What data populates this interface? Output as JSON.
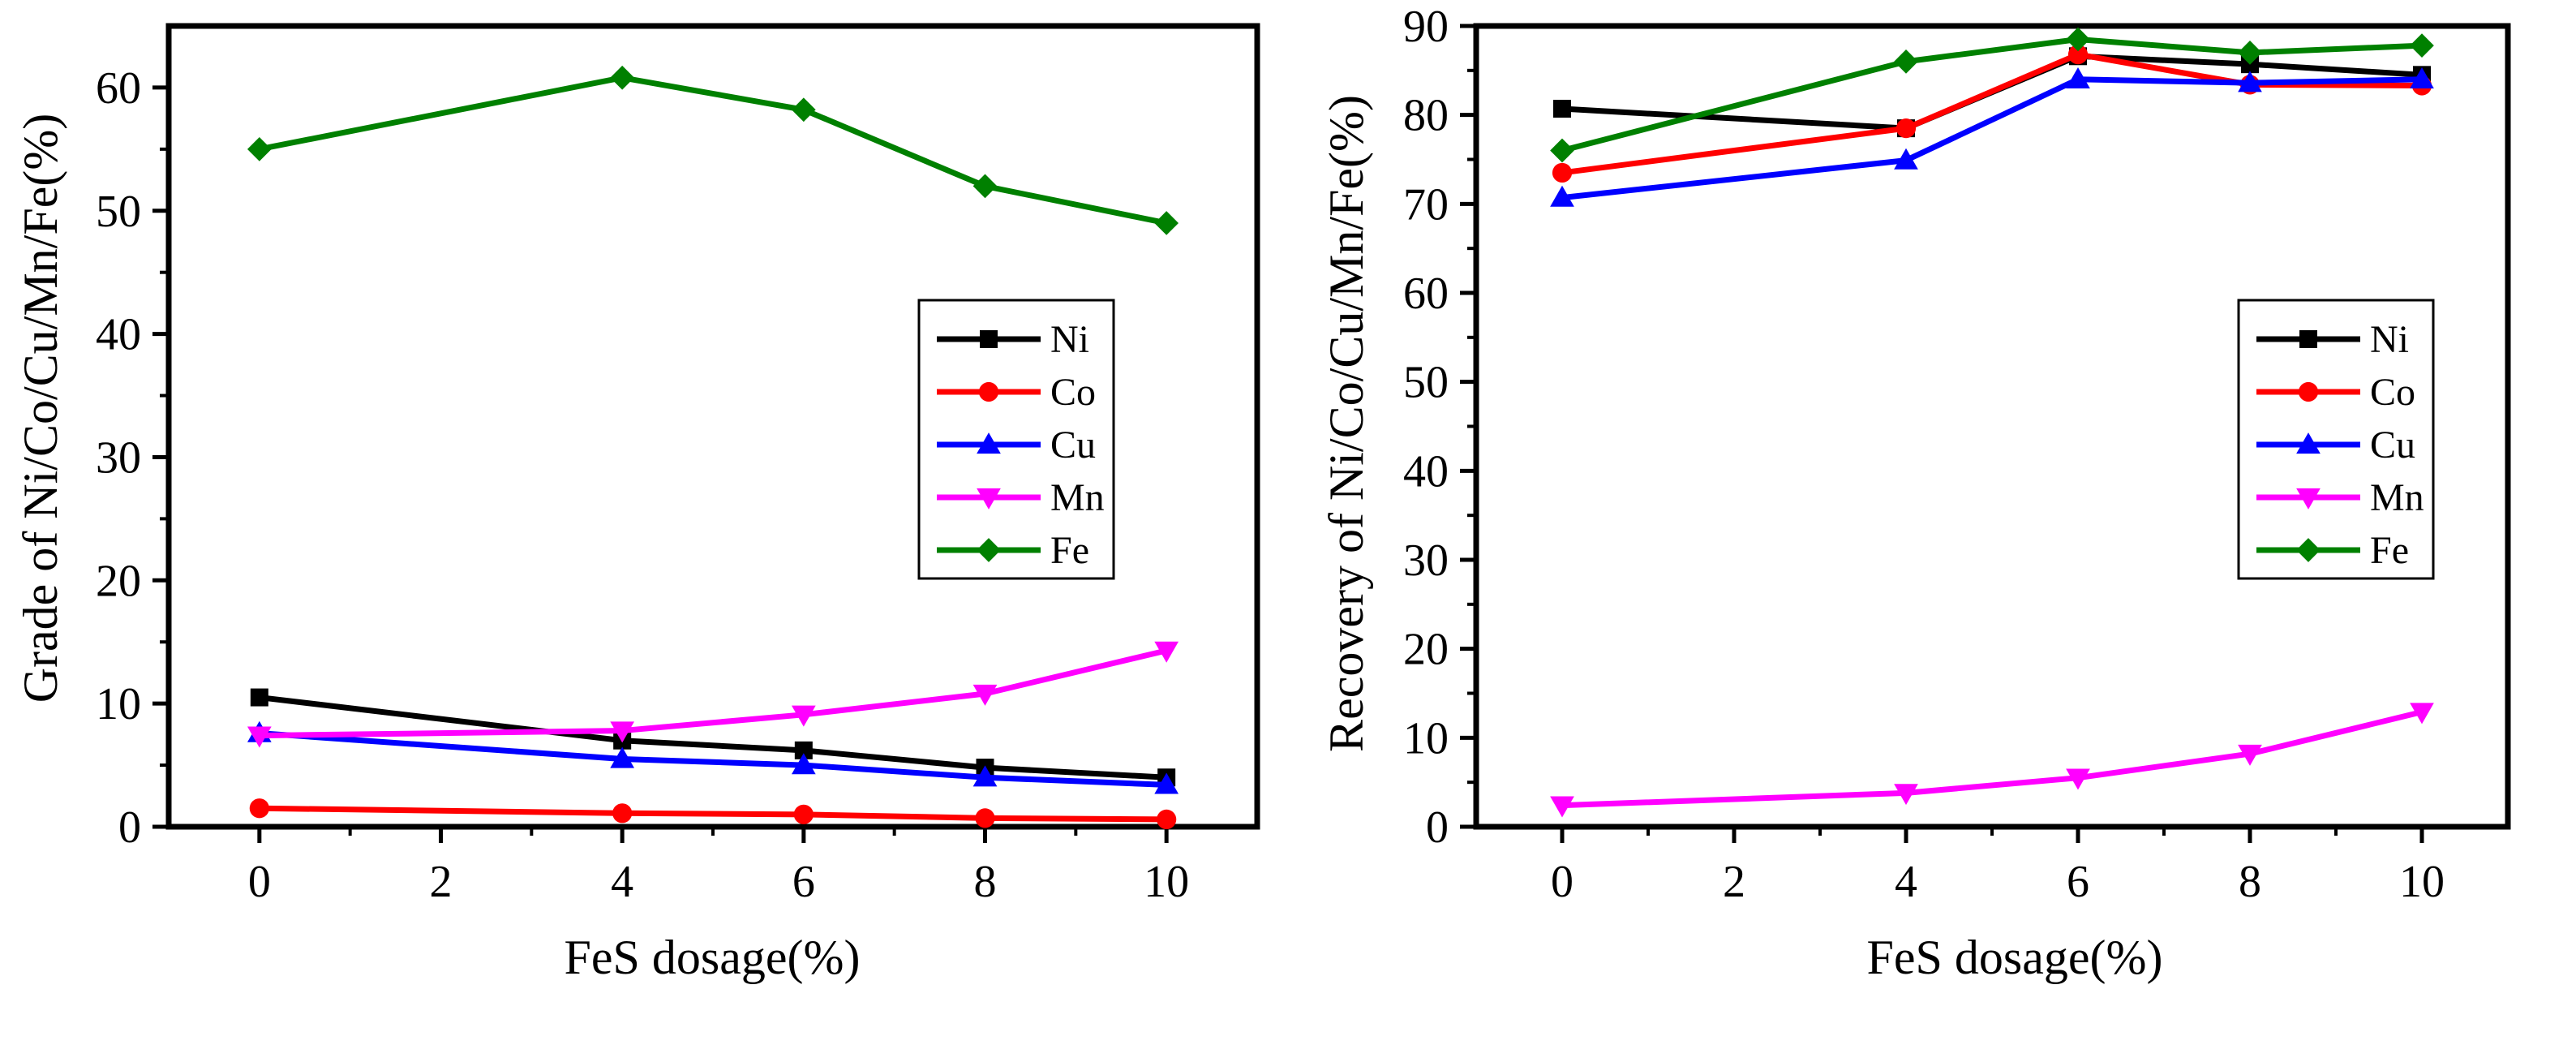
{
  "chart_data": [
    {
      "type": "line",
      "title": "",
      "xlabel": "FeS dosage(%)",
      "ylabel": "Grade of Ni/Co/Cu/Mn/Fe(%)",
      "xlim": [
        -1,
        11
      ],
      "ylim": [
        0,
        65
      ],
      "xticks": [
        0,
        2,
        4,
        6,
        8,
        10
      ],
      "yticks": [
        0,
        10,
        20,
        30,
        40,
        50,
        60
      ],
      "x": [
        0,
        4,
        6,
        8,
        10
      ],
      "legend_position": "right-middle",
      "series": [
        {
          "name": "Ni",
          "marker": "square",
          "color": "#000000",
          "values": [
            10.5,
            7.0,
            6.2,
            4.8,
            4.0
          ]
        },
        {
          "name": "Co",
          "marker": "circle",
          "color": "#ff0000",
          "values": [
            1.5,
            1.1,
            1.0,
            0.7,
            0.6
          ]
        },
        {
          "name": "Cu",
          "marker": "triangle-up",
          "color": "#0000ff",
          "values": [
            7.6,
            5.5,
            5.0,
            4.0,
            3.4
          ]
        },
        {
          "name": "Mn",
          "marker": "triangle-down",
          "color": "#ff00ff",
          "values": [
            7.4,
            7.8,
            9.1,
            10.8,
            14.3
          ]
        },
        {
          "name": "Fe",
          "marker": "diamond",
          "color": "#008000",
          "values": [
            55.0,
            60.8,
            58.2,
            52.0,
            49.0
          ]
        }
      ]
    },
    {
      "type": "line",
      "title": "",
      "xlabel": "FeS dosage(%)",
      "ylabel": "Recovery of Ni/Co/Cu/Mn/Fe(%)",
      "xlim": [
        -1,
        11
      ],
      "ylim": [
        0,
        90
      ],
      "xticks": [
        0,
        2,
        4,
        6,
        8,
        10
      ],
      "yticks": [
        0,
        10,
        20,
        30,
        40,
        50,
        60,
        70,
        80,
        90
      ],
      "x": [
        0,
        4,
        6,
        8,
        10
      ],
      "legend_position": "right-middle",
      "series": [
        {
          "name": "Ni",
          "marker": "square",
          "color": "#000000",
          "values": [
            80.7,
            78.5,
            86.6,
            85.7,
            84.5
          ]
        },
        {
          "name": "Co",
          "marker": "circle",
          "color": "#ff0000",
          "values": [
            73.5,
            78.5,
            86.8,
            83.4,
            83.3
          ]
        },
        {
          "name": "Cu",
          "marker": "triangle-up",
          "color": "#0000ff",
          "values": [
            70.7,
            74.9,
            84.0,
            83.6,
            84.0
          ]
        },
        {
          "name": "Mn",
          "marker": "triangle-down",
          "color": "#ff00ff",
          "values": [
            2.4,
            3.8,
            5.5,
            8.2,
            12.9
          ]
        },
        {
          "name": "Fe",
          "marker": "diamond",
          "color": "#008000",
          "values": [
            76.0,
            86.0,
            88.5,
            87.0,
            87.8
          ]
        }
      ]
    }
  ]
}
